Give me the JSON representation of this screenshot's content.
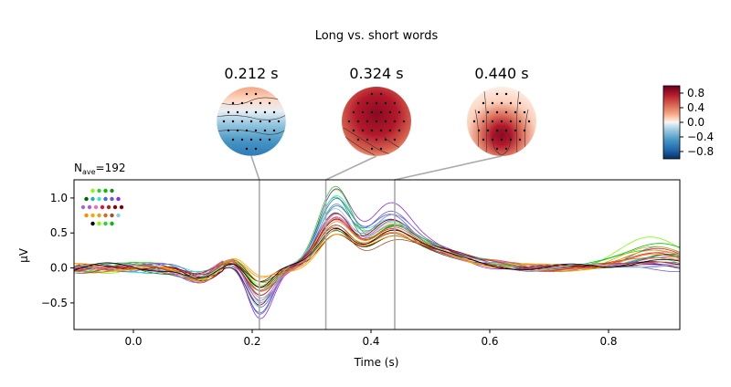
{
  "chart_data": {
    "type": "line",
    "title": "Long vs. short words",
    "nave_label": "N",
    "nave_sub": "ave",
    "nave_value": "=192",
    "xlabel": "Time (s)",
    "ylabel": "µV",
    "xlim": [
      -0.1,
      0.92
    ],
    "ylim": [
      -0.88,
      1.26
    ],
    "xticks": [
      0.0,
      0.2,
      0.4,
      0.6,
      0.8
    ],
    "xtick_labels": [
      "0.0",
      "0.2",
      "0.4",
      "0.6",
      "0.8"
    ],
    "yticks": [
      -0.5,
      0.0,
      0.5,
      1.0
    ],
    "ytick_labels": [
      "−0.5",
      "0.0",
      "0.5",
      "1.0"
    ],
    "grid": false,
    "legend": "none",
    "topomap_times": [
      0.212,
      0.324,
      0.44
    ],
    "topomap_labels": [
      "0.212 s",
      "0.324 s",
      "0.440 s"
    ],
    "colorbar": {
      "range": [
        -1.0,
        1.0
      ],
      "ticks": [
        0.8,
        0.4,
        0.0,
        -0.4,
        -0.8
      ],
      "tick_labels": [
        "0.8",
        "0.4",
        "0.0",
        "−0.4",
        "−0.8"
      ],
      "colormap": "RdBu_r"
    },
    "series_profiles": [
      {
        "color": "#7fff00",
        "n1": -0.25,
        "p2": 1.05,
        "p3": 0.6,
        "late": 0.45
      },
      {
        "color": "#32cd32",
        "n1": -0.4,
        "p2": 1.12,
        "p3": 0.55,
        "late": 0.3
      },
      {
        "color": "#00c000",
        "n1": -0.3,
        "p2": 1.0,
        "p3": 0.5,
        "late": 0.4
      },
      {
        "color": "#228b22",
        "n1": -0.35,
        "p2": 0.8,
        "p3": 0.45,
        "late": 0.2
      },
      {
        "color": "#006400",
        "n1": -0.2,
        "p2": 0.55,
        "p3": 0.3,
        "late": 0.15
      },
      {
        "color": "#20b2aa",
        "n1": -0.45,
        "p2": 0.9,
        "p3": 0.55,
        "late": 0.25
      },
      {
        "color": "#40e0d0",
        "n1": -0.55,
        "p2": 1.0,
        "p3": 0.6,
        "late": 0.1
      },
      {
        "color": "#4169e1",
        "n1": -0.65,
        "p2": 0.95,
        "p3": 0.7,
        "late": 0.05
      },
      {
        "color": "#6a5acd",
        "n1": -0.7,
        "p2": 0.85,
        "p3": 0.75,
        "late": 0.0
      },
      {
        "color": "#8a2be2",
        "n1": -0.78,
        "p2": 1.1,
        "p3": 0.85,
        "late": 0.1
      },
      {
        "color": "#9370db",
        "n1": -0.6,
        "p2": 0.75,
        "p3": 0.65,
        "late": 0.05
      },
      {
        "color": "#ba55d3",
        "n1": -0.5,
        "p2": 0.7,
        "p3": 0.55,
        "late": 0.15
      },
      {
        "color": "#ff69b4",
        "n1": -0.4,
        "p2": 0.65,
        "p3": 0.5,
        "late": 0.2
      },
      {
        "color": "#dc143c",
        "n1": -0.35,
        "p2": 0.75,
        "p3": 0.45,
        "late": 0.25
      },
      {
        "color": "#b22222",
        "n1": -0.3,
        "p2": 0.6,
        "p3": 0.4,
        "late": 0.2
      },
      {
        "color": "#8b0000",
        "n1": -0.55,
        "p2": 0.7,
        "p3": 0.6,
        "late": 0.05
      },
      {
        "color": "#800000",
        "n1": -0.25,
        "p2": 0.5,
        "p3": 0.35,
        "late": 0.1
      },
      {
        "color": "#ff8c00",
        "n1": -0.2,
        "p2": 0.55,
        "p3": 0.4,
        "late": 0.2
      },
      {
        "color": "#ffa500",
        "n1": -0.15,
        "p2": 0.45,
        "p3": 0.35,
        "late": 0.25
      },
      {
        "color": "#daa520",
        "n1": -0.2,
        "p2": 0.6,
        "p3": 0.45,
        "late": 0.3
      },
      {
        "color": "#d2691e",
        "n1": -0.3,
        "p2": 0.65,
        "p3": 0.5,
        "late": 0.15
      },
      {
        "color": "#a0522d",
        "n1": -0.25,
        "p2": 0.55,
        "p3": 0.3,
        "late": 0.1
      },
      {
        "color": "#87ceeb",
        "n1": -0.5,
        "p2": 0.85,
        "p3": 0.55,
        "late": 0.05
      },
      {
        "color": "#000000",
        "n1": -0.3,
        "p2": 0.6,
        "p3": 0.4,
        "late": 0.12
      }
    ]
  }
}
